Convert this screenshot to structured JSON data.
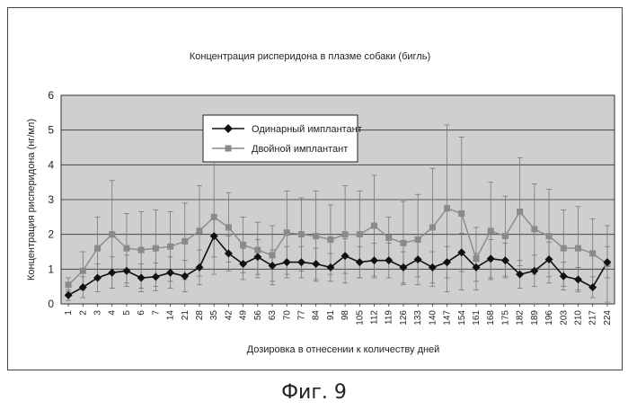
{
  "caption": "Фиг. 9",
  "colors": {
    "single": "#111111",
    "double": "#8a8a8a",
    "plot_bg": "#cfcfcf",
    "grid": "#333333",
    "error": "#777777"
  },
  "chart_data": {
    "type": "line",
    "title": "Концентрация рисперидона в плазме собаки (бигль)",
    "xlabel": "Дозировка в отнесении к количеству дней",
    "ylabel": "Концентрация рисперидона (нг/мл)",
    "ylim": [
      0,
      6
    ],
    "yticks": [
      "0",
      "1",
      "2",
      "3",
      "4",
      "5",
      "6"
    ],
    "grid": true,
    "legend_position": "upper-left",
    "categories": [
      "1",
      "2",
      "3",
      "4",
      "5",
      "6",
      "7",
      "14",
      "21",
      "28",
      "35",
      "42",
      "49",
      "56",
      "63",
      "70",
      "77",
      "84",
      "91",
      "98",
      "105",
      "112",
      "119",
      "126",
      "133",
      "140",
      "147",
      "154",
      "161",
      "168",
      "175",
      "182",
      "189",
      "196",
      "203",
      "210",
      "217",
      "224"
    ],
    "series": [
      {
        "name": "Одинарный имплантант",
        "marker": "diamond",
        "values": [
          0.25,
          0.48,
          0.75,
          0.9,
          0.95,
          0.75,
          0.78,
          0.9,
          0.8,
          1.05,
          1.95,
          1.45,
          1.15,
          1.35,
          1.1,
          1.2,
          1.2,
          1.15,
          1.05,
          1.38,
          1.2,
          1.25,
          1.25,
          1.05,
          1.28,
          1.05,
          1.2,
          1.48,
          1.05,
          1.3,
          1.25,
          0.85,
          0.95,
          1.28,
          0.8,
          0.7,
          0.48,
          1.2
        ],
        "error": [
          0.15,
          0.3,
          0.4,
          0.45,
          0.45,
          0.4,
          0.4,
          0.45,
          0.45,
          0.5,
          0.6,
          0.5,
          0.45,
          0.5,
          0.45,
          0.45,
          0.45,
          0.45,
          0.4,
          0.5,
          0.45,
          0.5,
          0.5,
          0.45,
          0.5,
          0.45,
          0.45,
          0.55,
          0.4,
          0.55,
          0.5,
          0.4,
          0.45,
          0.5,
          0.4,
          0.35,
          0.3,
          0.45
        ]
      },
      {
        "name": "Двойной имплантант",
        "marker": "square",
        "values": [
          0.55,
          0.95,
          1.6,
          2.0,
          1.6,
          1.55,
          1.6,
          1.65,
          1.8,
          2.1,
          2.5,
          2.2,
          1.7,
          1.55,
          1.4,
          2.05,
          2.0,
          1.95,
          1.85,
          2.0,
          2.0,
          2.25,
          1.9,
          1.75,
          1.85,
          2.2,
          2.75,
          2.6,
          1.3,
          2.1,
          1.95,
          2.65,
          2.15,
          1.95,
          1.6,
          1.6,
          1.45,
          1.15
        ],
        "error": [
          0.2,
          0.55,
          0.9,
          1.55,
          1.0,
          1.1,
          1.1,
          1.0,
          1.1,
          1.3,
          1.65,
          1.0,
          0.8,
          0.8,
          0.85,
          1.2,
          1.05,
          1.3,
          1.0,
          1.4,
          1.25,
          1.45,
          0.6,
          1.2,
          1.3,
          1.7,
          2.4,
          2.2,
          0.9,
          1.4,
          1.15,
          1.55,
          1.3,
          1.35,
          1.1,
          1.2,
          1.0,
          1.1
        ]
      }
    ]
  }
}
